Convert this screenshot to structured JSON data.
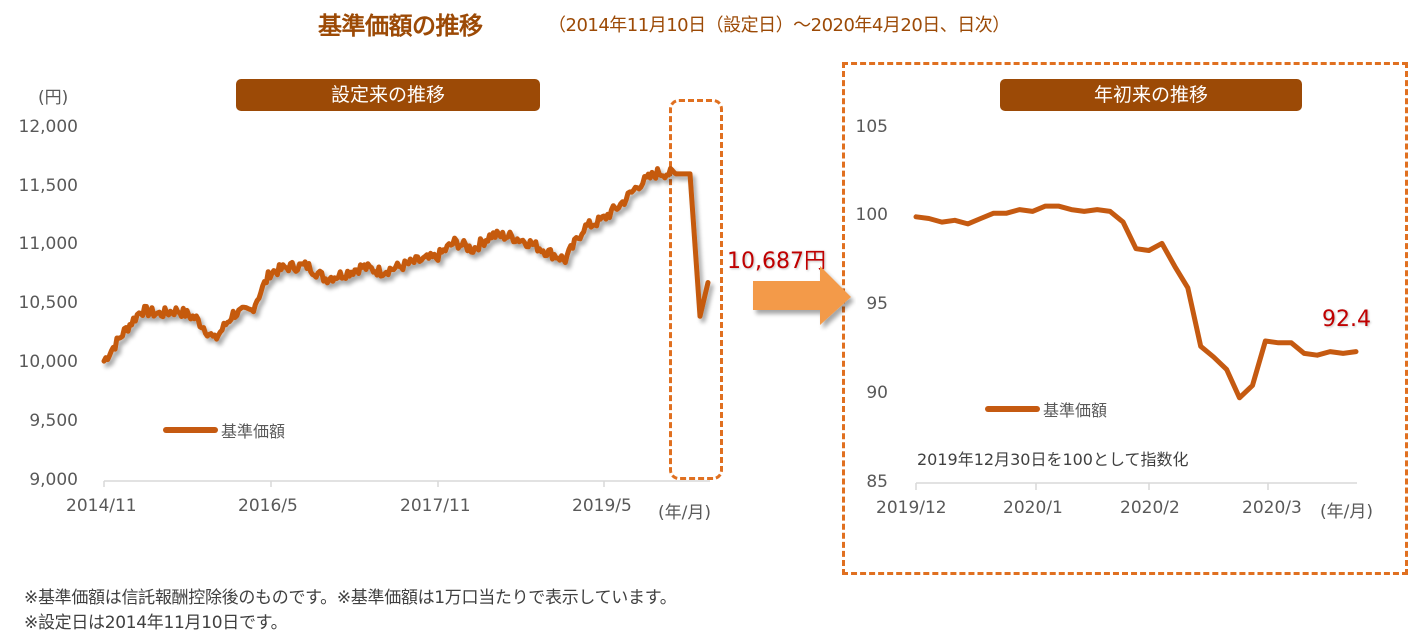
{
  "header": {
    "title": "基準価額の推移",
    "subtitle": "（2014年11月10日（設定日）～2020年4月20日、日次）"
  },
  "colors": {
    "accent": "#9C4A06",
    "line": "#C55A11",
    "arrow": "#F39A4A",
    "dash": "#E07020",
    "value_label": "#C00000",
    "axis": "#D9D9D9"
  },
  "left_panel": {
    "label": "設定来の推移",
    "y_unit": "(円)",
    "x_unit": "(年/月)",
    "legend": "基準価額",
    "latest_value": "10,687円"
  },
  "right_panel": {
    "label": "年初来の推移",
    "x_unit": "(年/月)",
    "legend": "基準価額",
    "latest_value": "92.4",
    "note": "2019年12月30日を100として指数化"
  },
  "footnotes": [
    "※基準価額は信託報酬控除後のものです。※基準価額は1万口当たりで表示しています。",
    "※設定日は2014年11月10日です。"
  ],
  "chart_data": [
    {
      "type": "line",
      "title": "設定来の推移",
      "xlabel": "(年/月)",
      "ylabel": "(円)",
      "ylim": [
        9000,
        12000
      ],
      "yticks": [
        "12,000",
        "11,500",
        "11,000",
        "10,500",
        "10,000",
        "9,500",
        "9,000"
      ],
      "xticks": [
        "2014/11",
        "2016/5",
        "2017/11",
        "2019/5"
      ],
      "grid": false,
      "legend_position": "inside-lower-left",
      "series": [
        {
          "name": "基準価額",
          "x": [
            "2014/11",
            "2015/1",
            "2015/3",
            "2015/5",
            "2015/7",
            "2015/9",
            "2015/11",
            "2016/1",
            "2016/3",
            "2016/5",
            "2016/7",
            "2016/9",
            "2016/11",
            "2017/1",
            "2017/3",
            "2017/5",
            "2017/7",
            "2017/9",
            "2017/11",
            "2018/1",
            "2018/3",
            "2018/5",
            "2018/7",
            "2018/9",
            "2018/11",
            "2019/1",
            "2019/3",
            "2019/5",
            "2019/7",
            "2019/9",
            "2019/11",
            "2020/1",
            "2020/2",
            "2020/3",
            "2020/4"
          ],
          "values": [
            10020,
            10250,
            10450,
            10420,
            10450,
            10380,
            10200,
            10420,
            10450,
            10770,
            10820,
            10830,
            10720,
            10760,
            10820,
            10780,
            10820,
            10870,
            10900,
            11030,
            10970,
            11090,
            11080,
            11030,
            10950,
            10880,
            11150,
            11220,
            11350,
            11520,
            11620,
            11610,
            11610,
            10400,
            10687
          ]
        }
      ],
      "annotations": [
        "10,687円"
      ]
    },
    {
      "type": "line",
      "title": "年初来の推移",
      "xlabel": "(年/月)",
      "ylabel": "",
      "ylim": [
        85,
        105
      ],
      "yticks": [
        "105",
        "100",
        "95",
        "90",
        "85"
      ],
      "xticks": [
        "2019/12",
        "2020/1",
        "2020/2",
        "2020/3"
      ],
      "grid": false,
      "legend_position": "inside-lower-left",
      "series": [
        {
          "name": "基準価額",
          "x": [
            "2019/12/30",
            "2020/1/6",
            "2020/1/7",
            "2020/1/9",
            "2020/1/14",
            "2020/1/16",
            "2020/1/20",
            "2020/1/23",
            "2020/1/27",
            "2020/1/30",
            "2020/2/3",
            "2020/2/6",
            "2020/2/10",
            "2020/2/13",
            "2020/2/17",
            "2020/2/20",
            "2020/2/24",
            "2020/2/25",
            "2020/2/27",
            "2020/3/2",
            "2020/3/4",
            "2020/3/6",
            "2020/3/9",
            "2020/3/12",
            "2020/3/13",
            "2020/3/16",
            "2020/3/19",
            "2020/3/23",
            "2020/3/26",
            "2020/3/30",
            "2020/4/2",
            "2020/4/6",
            "2020/4/9",
            "2020/4/14",
            "2020/4/20"
          ],
          "values": [
            100.0,
            99.9,
            99.7,
            99.8,
            99.6,
            99.9,
            100.2,
            100.2,
            100.4,
            100.3,
            100.6,
            100.6,
            100.4,
            100.3,
            100.4,
            100.3,
            99.7,
            98.2,
            98.1,
            98.5,
            97.2,
            96.0,
            92.7,
            92.1,
            91.4,
            89.8,
            90.5,
            93.0,
            92.9,
            92.9,
            92.3,
            92.2,
            92.4,
            92.3,
            92.4
          ]
        }
      ],
      "annotations": [
        "92.4",
        "2019年12月30日を100として指数化"
      ]
    }
  ]
}
